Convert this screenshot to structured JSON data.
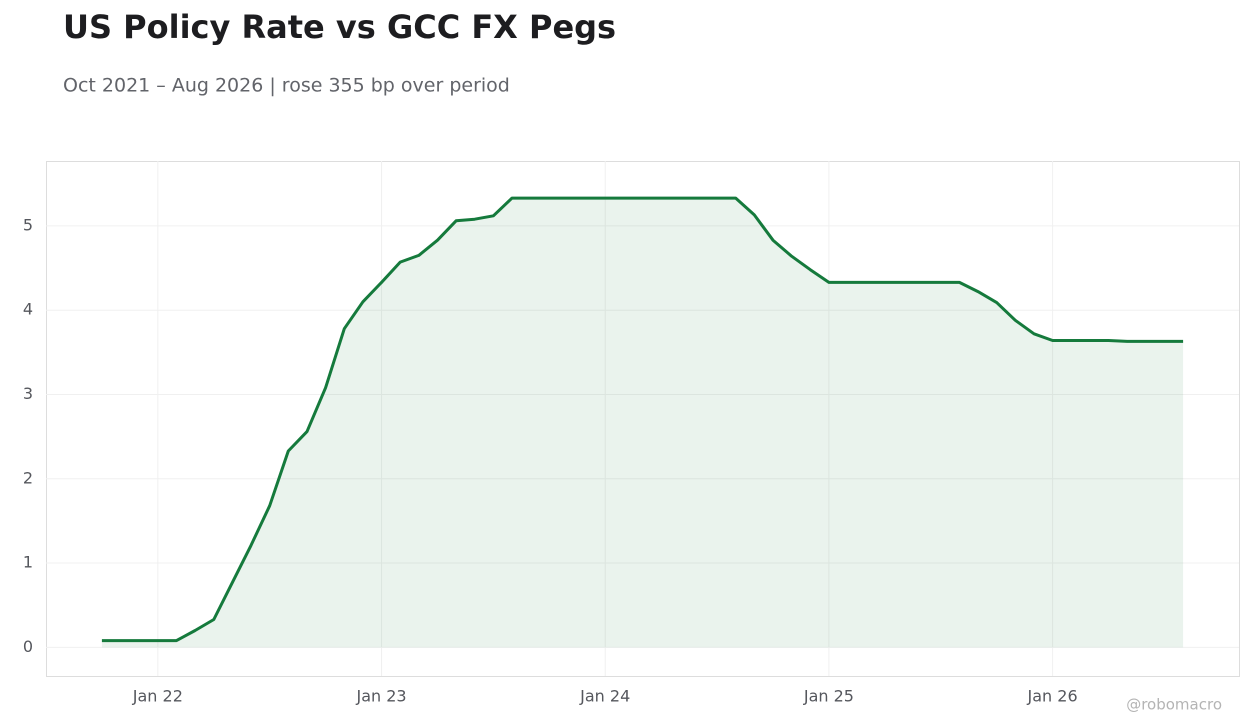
{
  "chart_data": {
    "type": "line",
    "title": "US Policy Rate vs GCC FX Pegs",
    "subtitle": "Oct 2021 – Aug 2026 | rose 355 bp over period",
    "watermark": "@robomacro",
    "color": "#157a3c",
    "fill": true,
    "grid": true,
    "x": [
      "2021-10",
      "2021-11",
      "2021-12",
      "2022-01",
      "2022-02",
      "2022-03",
      "2022-04",
      "2022-05",
      "2022-06",
      "2022-07",
      "2022-08",
      "2022-09",
      "2022-10",
      "2022-11",
      "2022-12",
      "2023-01",
      "2023-02",
      "2023-03",
      "2023-04",
      "2023-05",
      "2023-06",
      "2023-07",
      "2023-08",
      "2023-09",
      "2023-10",
      "2023-11",
      "2023-12",
      "2024-01",
      "2024-02",
      "2024-03",
      "2024-04",
      "2024-05",
      "2024-06",
      "2024-07",
      "2024-08",
      "2024-09",
      "2024-10",
      "2024-11",
      "2024-12",
      "2025-01",
      "2025-02",
      "2025-03",
      "2025-04",
      "2025-05",
      "2025-06",
      "2025-07",
      "2025-08",
      "2025-09",
      "2025-10",
      "2025-11",
      "2025-12",
      "2026-01",
      "2026-02",
      "2026-03",
      "2026-04",
      "2026-05",
      "2026-06",
      "2026-07",
      "2026-08"
    ],
    "values": [
      0.08,
      0.08,
      0.08,
      0.08,
      0.08,
      0.2,
      0.33,
      0.77,
      1.21,
      1.68,
      2.33,
      2.56,
      3.08,
      3.78,
      4.1,
      4.33,
      4.57,
      4.65,
      4.83,
      5.06,
      5.08,
      5.12,
      5.33,
      5.33,
      5.33,
      5.33,
      5.33,
      5.33,
      5.33,
      5.33,
      5.33,
      5.33,
      5.33,
      5.33,
      5.33,
      5.13,
      4.83,
      4.64,
      4.48,
      4.33,
      4.33,
      4.33,
      4.33,
      4.33,
      4.33,
      4.33,
      4.33,
      4.22,
      4.09,
      3.88,
      3.72,
      3.64,
      3.64,
      3.64,
      3.64,
      3.63,
      3.63,
      3.63,
      3.63
    ],
    "xlim": [
      "2021-07",
      "2026-11"
    ],
    "xticks": [
      {
        "value": "2022-01",
        "label": "Jan 22"
      },
      {
        "value": "2023-01",
        "label": "Jan 23"
      },
      {
        "value": "2024-01",
        "label": "Jan 24"
      },
      {
        "value": "2025-01",
        "label": "Jan 25"
      },
      {
        "value": "2026-01",
        "label": "Jan 26"
      }
    ],
    "ylim": [
      -0.34,
      5.77
    ],
    "yticks": [
      0,
      1,
      2,
      3,
      4,
      5
    ]
  }
}
